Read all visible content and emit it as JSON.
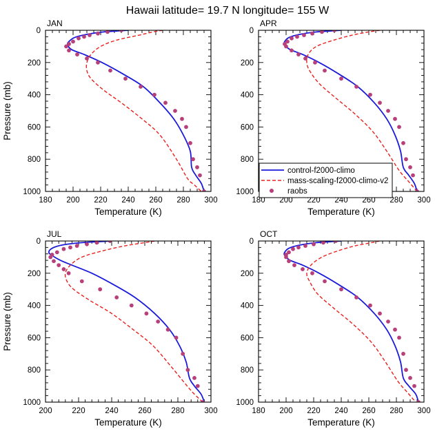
{
  "figure": {
    "title": "Hawaii  latitude= 19.7 N longitude= 155 W"
  },
  "legend": {
    "entries": [
      {
        "label": "control-f2000-climo",
        "style": "solid",
        "color": "#1a1adb"
      },
      {
        "label": "mass-scaling-f2000-climo-v2",
        "style": "dashed",
        "color": "#e8201e"
      },
      {
        "label": "raobs",
        "style": "dots",
        "color": "#b8407a"
      }
    ]
  },
  "colors": {
    "control": "#1a1adb",
    "mass": "#e8201e",
    "raobs": "#b8407a"
  },
  "chart_data": [
    {
      "type": "line",
      "panel": "JAN",
      "xlabel": "Temperature (K)",
      "ylabel": "Pressure (mb)",
      "xlim": [
        180,
        300
      ],
      "ylim": [
        1000,
        0
      ],
      "xticks": [
        180,
        200,
        220,
        240,
        260,
        280,
        300
      ],
      "yticks": [
        0,
        200,
        400,
        600,
        800,
        1000
      ],
      "series": [
        {
          "name": "control-f2000-climo",
          "x": [
            240,
            222,
            210,
            201,
            197,
            196,
            199,
            208,
            221,
            236,
            251,
            263,
            273,
            280,
            285,
            286,
            289,
            293,
            295
          ],
          "y": [
            0,
            10,
            25,
            45,
            70,
            90,
            120,
            150,
            200,
            270,
            350,
            450,
            550,
            650,
            750,
            850,
            900,
            950,
            1000
          ]
        },
        {
          "name": "mass-scaling-f2000-climo-v2",
          "x": [
            265,
            258,
            248,
            232,
            220,
            213,
            210,
            210,
            213,
            222,
            235,
            250,
            263,
            275,
            283,
            288,
            293
          ],
          "y": [
            0,
            10,
            30,
            60,
            100,
            150,
            200,
            250,
            300,
            370,
            450,
            550,
            650,
            800,
            920,
            960,
            1000
          ]
        },
        {
          "name": "raobs",
          "x": [
            235,
            225,
            218,
            212,
            208,
            204,
            200,
            197,
            195,
            197,
            203,
            210,
            218,
            227,
            238,
            249,
            259,
            267,
            274,
            279,
            282,
            285,
            287,
            290,
            292,
            295
          ],
          "y": [
            0,
            10,
            20,
            30,
            40,
            50,
            70,
            85,
            100,
            125,
            150,
            175,
            200,
            250,
            300,
            350,
            400,
            450,
            500,
            550,
            600,
            700,
            800,
            850,
            900,
            1000
          ]
        }
      ]
    },
    {
      "type": "line",
      "panel": "APR",
      "xlabel": "Temperature (K)",
      "ylabel": "",
      "xlim": [
        180,
        300
      ],
      "ylim": [
        1000,
        0
      ],
      "xticks": [
        180,
        200,
        220,
        240,
        260,
        280,
        300
      ],
      "yticks": [
        0,
        200,
        400,
        600,
        800,
        1000
      ],
      "series": [
        {
          "name": "control-f2000-climo",
          "x": [
            240,
            222,
            210,
            202,
            199,
            199,
            203,
            212,
            224,
            238,
            252,
            264,
            273,
            279,
            283,
            285,
            289,
            293,
            295
          ],
          "y": [
            0,
            10,
            25,
            45,
            70,
            90,
            120,
            150,
            200,
            270,
            350,
            450,
            550,
            650,
            750,
            850,
            900,
            950,
            1000
          ]
        },
        {
          "name": "mass-scaling-f2000-climo-v2",
          "x": [
            268,
            260,
            248,
            235,
            222,
            216,
            215,
            217,
            224,
            236,
            250,
            263,
            273,
            282,
            289,
            295
          ],
          "y": [
            0,
            10,
            30,
            60,
            100,
            150,
            200,
            250,
            330,
            420,
            520,
            630,
            750,
            870,
            940,
            1000
          ]
        },
        {
          "name": "raobs",
          "x": [
            235,
            226,
            219,
            213,
            208,
            204,
            201,
            199,
            200,
            204,
            209,
            214,
            221,
            228,
            240,
            251,
            261,
            268,
            274,
            279,
            282,
            285,
            287,
            290,
            292,
            295
          ],
          "y": [
            0,
            10,
            20,
            30,
            40,
            50,
            70,
            85,
            100,
            125,
            150,
            175,
            200,
            250,
            300,
            350,
            400,
            450,
            500,
            550,
            600,
            700,
            800,
            850,
            900,
            1000
          ]
        }
      ]
    },
    {
      "type": "line",
      "panel": "JUL",
      "xlabel": "Temperature (K)",
      "ylabel": "Pressure (mb)",
      "xlim": [
        200,
        300
      ],
      "ylim": [
        1000,
        0
      ],
      "xticks": [
        200,
        220,
        240,
        260,
        280,
        300
      ],
      "yticks": [
        0,
        200,
        400,
        600,
        800,
        1000
      ],
      "series": [
        {
          "name": "control-f2000-climo",
          "x": [
            240,
            222,
            210,
            204,
            202,
            204,
            209,
            216,
            228,
            241,
            254,
            266,
            275,
            281,
            285,
            287,
            290,
            294,
            296
          ],
          "y": [
            0,
            10,
            25,
            45,
            70,
            90,
            120,
            150,
            200,
            270,
            350,
            450,
            550,
            650,
            750,
            850,
            900,
            950,
            1000
          ]
        },
        {
          "name": "mass-scaling-f2000-climo-v2",
          "x": [
            266,
            260,
            248,
            235,
            222,
            215,
            212,
            213,
            217,
            227,
            240,
            253,
            265,
            276,
            284,
            289,
            295
          ],
          "y": [
            0,
            10,
            30,
            60,
            100,
            150,
            200,
            250,
            300,
            370,
            450,
            550,
            650,
            780,
            880,
            940,
            1000
          ]
        },
        {
          "name": "raobs",
          "x": [
            239,
            231,
            225,
            219,
            215,
            211,
            207,
            204,
            203,
            205,
            208,
            211,
            214,
            222,
            233,
            243,
            252,
            261,
            268,
            274,
            279,
            283,
            286,
            290,
            292,
            295
          ],
          "y": [
            0,
            10,
            20,
            30,
            40,
            50,
            70,
            85,
            100,
            125,
            150,
            175,
            200,
            250,
            300,
            350,
            400,
            450,
            500,
            550,
            600,
            700,
            800,
            850,
            900,
            1000
          ]
        }
      ]
    },
    {
      "type": "line",
      "panel": "OCT",
      "xlabel": "Temperature (K)",
      "ylabel": "",
      "xlim": [
        180,
        300
      ],
      "ylim": [
        1000,
        0
      ],
      "xticks": [
        180,
        200,
        220,
        240,
        260,
        280,
        300
      ],
      "yticks": [
        0,
        200,
        400,
        600,
        800,
        1000
      ],
      "series": [
        {
          "name": "control-f2000-climo",
          "x": [
            240,
            222,
            210,
            202,
            199,
            199,
            203,
            212,
            224,
            238,
            252,
            264,
            273,
            279,
            283,
            285,
            289,
            294,
            296
          ],
          "y": [
            0,
            10,
            25,
            45,
            70,
            90,
            120,
            150,
            200,
            270,
            350,
            450,
            550,
            650,
            750,
            850,
            900,
            950,
            1000
          ]
        },
        {
          "name": "mass-scaling-f2000-climo-v2",
          "x": [
            268,
            262,
            250,
            238,
            226,
            218,
            215,
            217,
            223,
            235,
            249,
            262,
            272,
            281,
            288,
            294
          ],
          "y": [
            0,
            10,
            30,
            60,
            100,
            150,
            200,
            250,
            330,
            420,
            520,
            630,
            750,
            870,
            940,
            1000
          ]
        },
        {
          "name": "raobs",
          "x": [
            236,
            227,
            220,
            214,
            209,
            205,
            202,
            200,
            200,
            202,
            206,
            212,
            219,
            228,
            240,
            251,
            261,
            268,
            274,
            279,
            282,
            285,
            287,
            290,
            293,
            296
          ],
          "y": [
            0,
            10,
            20,
            30,
            40,
            50,
            70,
            85,
            100,
            125,
            150,
            175,
            200,
            250,
            300,
            350,
            400,
            450,
            500,
            550,
            600,
            700,
            800,
            850,
            900,
            1000
          ]
        }
      ]
    }
  ]
}
